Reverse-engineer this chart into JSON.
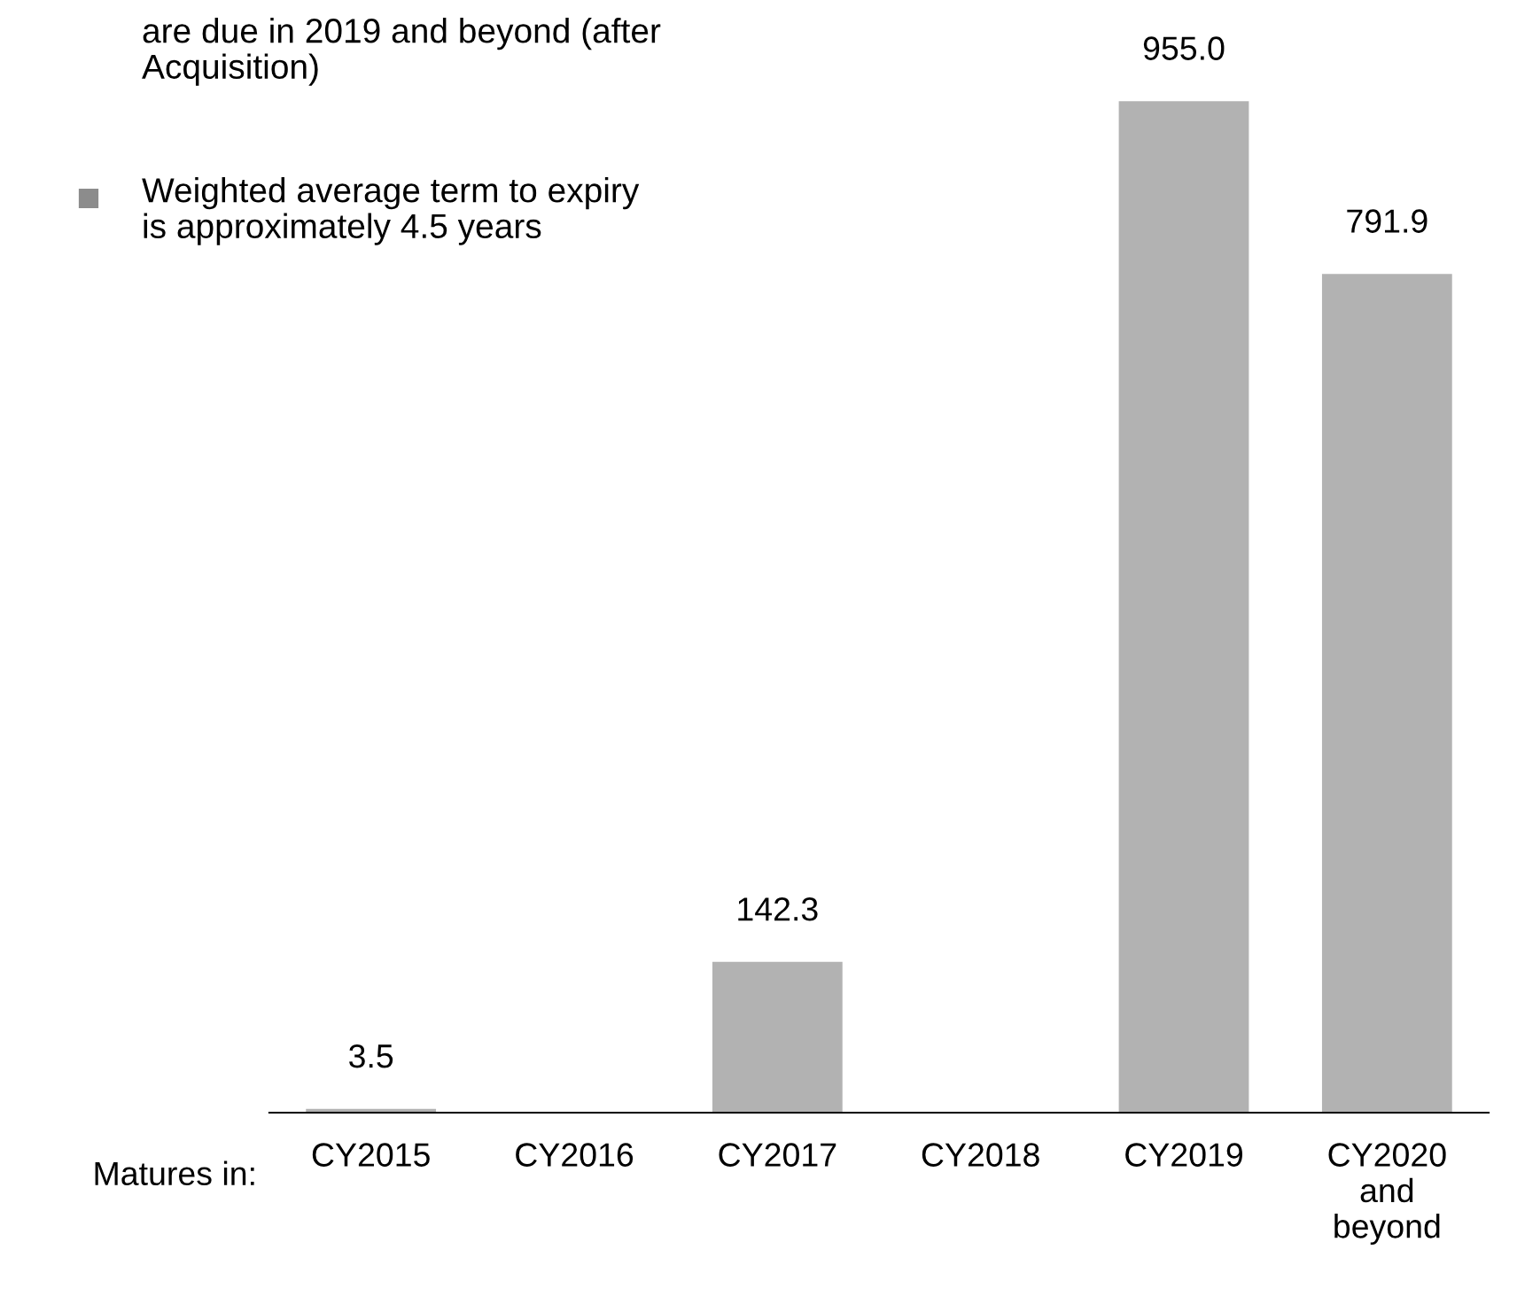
{
  "chart_data": {
    "type": "bar",
    "categories": [
      "CY2015",
      "CY2016",
      "CY2017",
      "CY2018",
      "CY2019",
      "CY2020\nand\nbeyond"
    ],
    "values": [
      3.5,
      null,
      142.3,
      null,
      955.0,
      791.9
    ],
    "value_labels": [
      "3.5",
      null,
      "142.3",
      null,
      "955.0",
      "791.9"
    ],
    "color": "#b2b2b2",
    "xlabel": "Matures in:",
    "annotations": [
      "are due in 2019 and beyond (after\nAcquisition)",
      "Weighted average term to expiry\nis approximately 4.5 years"
    ],
    "grid": false,
    "legend": false
  }
}
